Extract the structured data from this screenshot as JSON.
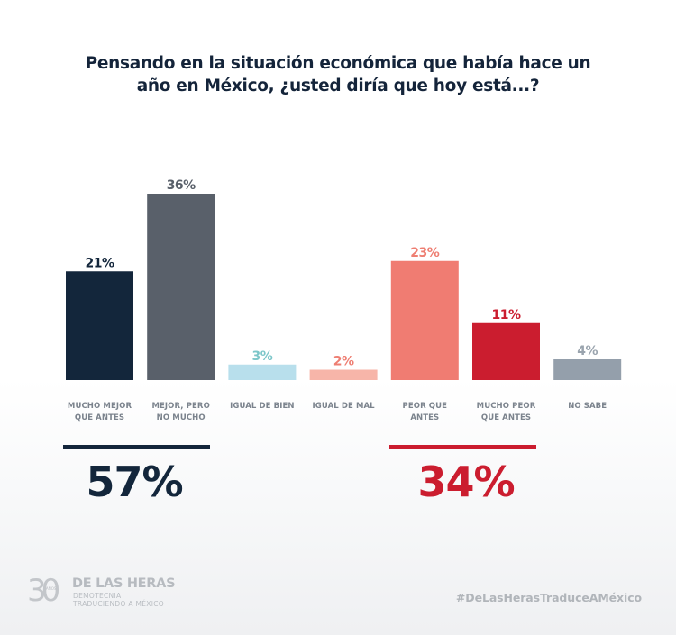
{
  "chart_data": {
    "type": "bar",
    "title": "Pensando en la situación económica que había hace un año en México, ¿usted diría que hoy está...?",
    "title_lines": [
      "Pensando en la situación económica que había hace un",
      "año en México, ¿usted diría que hoy está...?"
    ],
    "categories": [
      "MUCHO MEJOR QUE ANTES",
      "MEJOR, PERO NO MUCHO",
      "IGUAL DE BIEN",
      "IGUAL DE MAL",
      "PEOR QUE ANTES",
      "MUCHO PEOR QUE ANTES",
      "NO SABE"
    ],
    "category_lines": [
      [
        "MUCHO MEJOR",
        "QUE ANTES"
      ],
      [
        "MEJOR, PERO",
        "NO MUCHO"
      ],
      [
        "IGUAL DE BIEN"
      ],
      [
        "IGUAL DE MAL"
      ],
      [
        "PEOR QUE",
        "ANTES"
      ],
      [
        "MUCHO PEOR",
        "QUE ANTES"
      ],
      [
        "NO SABE"
      ]
    ],
    "values": [
      21,
      36,
      3,
      2,
      23,
      11,
      4
    ],
    "value_labels": [
      "21%",
      "36%",
      "3%",
      "2%",
      "23%",
      "11%",
      "4%"
    ],
    "bar_colors": [
      "#13263b",
      "#59606a",
      "#b8dfec",
      "#f7b5a9",
      "#f07c72",
      "#cb1d2f",
      "#949fab"
    ],
    "label_colors": [
      "#13263b",
      "#59606a",
      "#7cc6c9",
      "#ee7e72",
      "#ee7e72",
      "#cb1d2f",
      "#9aa4ae"
    ],
    "xlabel": "",
    "ylabel": "",
    "ylim": [
      0,
      40
    ],
    "grid": false,
    "legend": "none",
    "unit": "%"
  },
  "totals": [
    {
      "label": "57%",
      "value": 57,
      "color": "#13263b",
      "groups": [
        "MUCHO MEJOR QUE ANTES",
        "MEJOR, PERO NO MUCHO"
      ]
    },
    {
      "label": "34%",
      "value": 34,
      "color": "#cb1d2f",
      "groups": [
        "PEOR QUE ANTES",
        "MUCHO PEOR QUE ANTES"
      ]
    }
  ],
  "footer": {
    "logo_number": "30",
    "logo_anos": "AÑOS",
    "logo_name": "DE LAS HERAS",
    "logo_sub1": "DEMOTECNIA",
    "logo_sub2": "TRADUCIENDO A MÉXICO",
    "hashtag": "#DeLasHerasTraduceAMéxico"
  }
}
